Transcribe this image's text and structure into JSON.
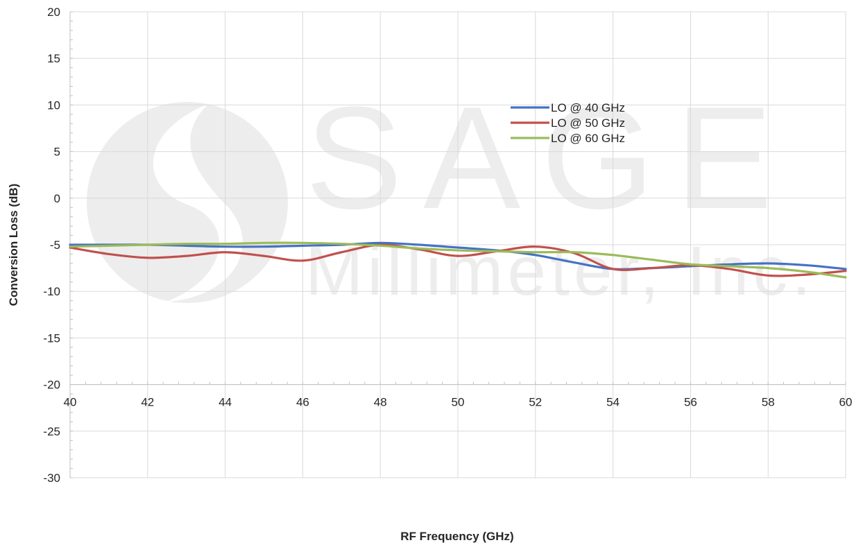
{
  "chart_data": {
    "type": "line",
    "title": "",
    "xlabel": "RF Frequency (GHz)",
    "ylabel": "Conversion Loss (dB)",
    "xlim": [
      40,
      60
    ],
    "ylim": [
      -30,
      20
    ],
    "xticks": [
      40,
      42,
      44,
      46,
      48,
      50,
      52,
      54,
      56,
      58,
      60
    ],
    "yticks": [
      20,
      15,
      10,
      5,
      0,
      -5,
      -10,
      -15,
      -20,
      -25,
      -30
    ],
    "grid": true,
    "legend_position": "top-right",
    "series": [
      {
        "name": "LO @ 40 GHz",
        "color": "#4472c4",
        "x": [
          40,
          41,
          42,
          43,
          44,
          45,
          46,
          47,
          48,
          49,
          50,
          51,
          52,
          53,
          54,
          55,
          56,
          57,
          58,
          59,
          60
        ],
        "y": [
          -5.0,
          -5.0,
          -5.0,
          -5.1,
          -5.2,
          -5.2,
          -5.1,
          -5.0,
          -4.8,
          -5.0,
          -5.3,
          -5.6,
          -6.1,
          -6.9,
          -7.6,
          -7.5,
          -7.3,
          -7.1,
          -7.0,
          -7.2,
          -7.6
        ]
      },
      {
        "name": "LO @ 50 GHz",
        "color": "#c0504d",
        "x": [
          40,
          41,
          42,
          43,
          44,
          45,
          46,
          47,
          48,
          49,
          50,
          51,
          52,
          53,
          54,
          55,
          56,
          57,
          58,
          59,
          60
        ],
        "y": [
          -5.3,
          -6.0,
          -6.4,
          -6.2,
          -5.8,
          -6.2,
          -6.7,
          -5.8,
          -5.0,
          -5.5,
          -6.2,
          -5.7,
          -5.2,
          -5.9,
          -7.6,
          -7.5,
          -7.2,
          -7.6,
          -8.3,
          -8.2,
          -7.8
        ]
      },
      {
        "name": "LO @ 60 GHz",
        "color": "#9bbb59",
        "x": [
          40,
          41,
          42,
          43,
          44,
          45,
          46,
          47,
          48,
          49,
          50,
          51,
          52,
          53,
          54,
          55,
          56,
          57,
          58,
          59,
          60
        ],
        "y": [
          -5.2,
          -5.1,
          -5.0,
          -4.9,
          -4.9,
          -4.8,
          -4.8,
          -4.9,
          -5.1,
          -5.4,
          -5.6,
          -5.7,
          -5.8,
          -5.8,
          -6.1,
          -6.6,
          -7.1,
          -7.3,
          -7.5,
          -7.9,
          -8.5
        ]
      }
    ]
  },
  "watermark": {
    "brand": "SAGE",
    "company": "Millimeter, Inc.",
    "color": "#ededed"
  }
}
